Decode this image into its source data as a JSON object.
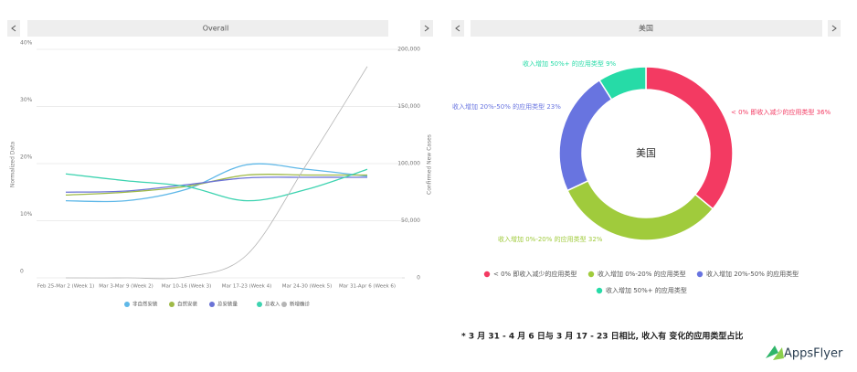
{
  "chart_data": [
    {
      "type": "line",
      "selector": "Overall",
      "ylabel": "Normalized Data",
      "y2label": "Confirmed New Cases",
      "categories": [
        "Feb 25-Mar 2 (Week 1)",
        "Mar 3-Mar 9 (Week 2)",
        "Mar 10-16 (Week 3)",
        "Mar 17-23 (Week 4)",
        "Mar 24-30 (Week 5)",
        "Mar 31-Apr 6 (Week 6)"
      ],
      "ylim": [
        0,
        40
      ],
      "yticks": [
        0,
        {
          "value": 10,
          "label": "10%"
        },
        {
          "value": 20,
          "label": "20%"
        },
        {
          "value": 30,
          "label": "30%"
        },
        {
          "value": 40,
          "label": "40%"
        }
      ],
      "y2lim": [
        0,
        200000
      ],
      "y2ticks": [
        0,
        {
          "value": 50000,
          "label": "50,000"
        },
        {
          "value": 100000,
          "label": "100,000"
        },
        {
          "value": 150000,
          "label": "150,000"
        },
        {
          "value": 200000,
          "label": "200,000"
        }
      ],
      "grid": true,
      "series": [
        {
          "name": "非自然安装",
          "color": "#5fb8e8",
          "values": [
            13.5,
            13.5,
            15.5,
            19.8,
            19,
            17.8
          ]
        },
        {
          "name": "自然安装",
          "color": "#9fba47",
          "values": [
            14.5,
            15,
            16,
            18,
            18,
            18
          ]
        },
        {
          "name": "总安装量",
          "color": "#6b73d6",
          "values": [
            15,
            15.2,
            16.3,
            17.5,
            17.6,
            17.6
          ]
        },
        {
          "name": "总收入",
          "color": "#3dd3b0",
          "values": [
            18.2,
            17,
            16,
            13.5,
            15.5,
            19
          ]
        },
        {
          "name": "新增确诊",
          "color": "#b5b5b5",
          "axis": "y2",
          "values": [
            0,
            0,
            1000,
            20000,
            100000,
            185000
          ]
        }
      ]
    },
    {
      "type": "pie",
      "selector": "美国",
      "center_label": "美国",
      "categories": [
        "< 0% 即收入减少的应用类型",
        "收入增加 0%-20% 的应用类型",
        "收入增加 20%-50% 的应用类型",
        "收入增加 50%+ 的应用类型"
      ],
      "values": [
        36,
        32,
        23,
        9
      ],
      "value_labels": [
        "< 0% 即收入减少的应用类型 36%",
        "收入增加 0%-20% 的应用类型 32%",
        "收入增加 20%-50% 的应用类型 23%",
        "收入增加 50%+ 的应用类型 9%"
      ],
      "colors": [
        "#f33a62",
        "#a0cb3c",
        "#6874e0",
        "#26dba7"
      ]
    }
  ],
  "footnote": "* 3 月 31 - 4 月 6 日与 3 月 17 - 23 日相比, 收入有 变化的应用类型占比",
  "logo": "AppsFlyer"
}
